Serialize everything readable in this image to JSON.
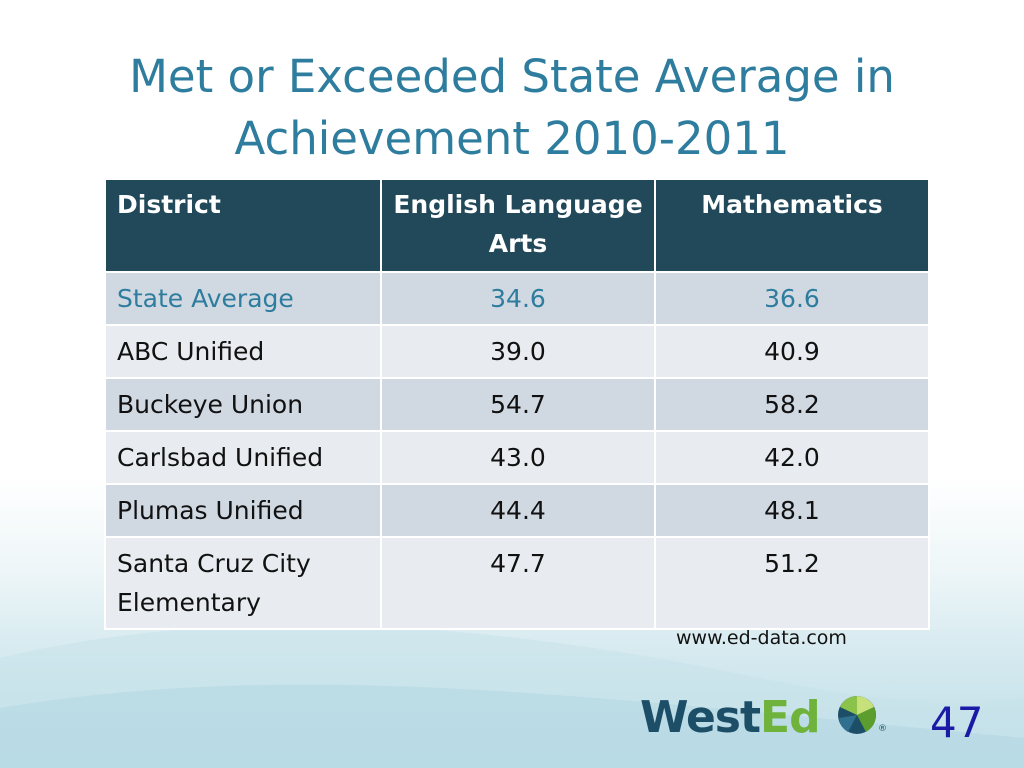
{
  "slide": {
    "title": "Met or Exceeded State Average in Achievement 2010-2011",
    "source": "www.ed-data.com",
    "page_number": "47",
    "logo": {
      "text_main": "West",
      "text_accent": "Ed",
      "registered": "®"
    }
  },
  "table": {
    "headers": [
      "District",
      "English Language Arts",
      "Mathematics"
    ],
    "rows": [
      {
        "district": "State Average",
        "ela": "34.6",
        "math": "36.6"
      },
      {
        "district": "ABC Unified",
        "ela": "39.0",
        "math": "40.9"
      },
      {
        "district": "Buckeye Union",
        "ela": "54.7",
        "math": "58.2"
      },
      {
        "district": "Carlsbad Unified",
        "ela": "43.0",
        "math": "42.0"
      },
      {
        "district": "Plumas Unified",
        "ela": "44.4",
        "math": "48.1"
      },
      {
        "district": "Santa Cruz City Elementary",
        "ela": "47.7",
        "math": "51.2"
      }
    ]
  },
  "colors": {
    "title": "#2e7d9e",
    "header_bg": "#22495a",
    "row_dark": "#d0d8e2",
    "row_light": "#e8ecf0",
    "page_number": "#1a1aa6",
    "logo_blue": "#1d4e68",
    "logo_green": "#6fb33d"
  }
}
